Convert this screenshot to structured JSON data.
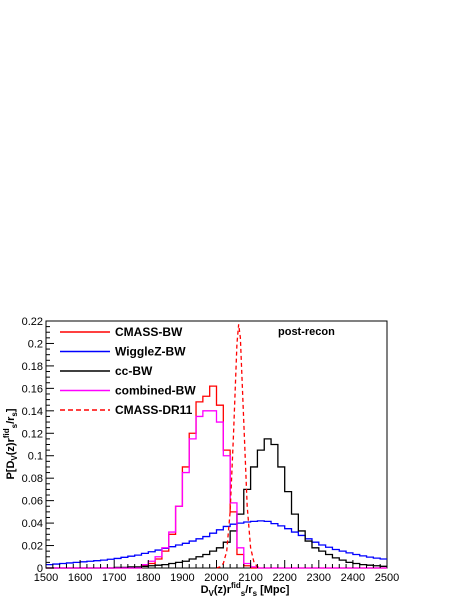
{
  "chart_data": {
    "type": "line",
    "xlabel_main": "D",
    "xlabel_sub1": "V",
    "xlabel_mid": "(z)r",
    "xlabel_sup": "fid",
    "xlabel_sub2": "s",
    "xlabel_mid2": "/r",
    "xlabel_sub3": "s",
    "xlabel_unit": " [Mpc]",
    "ylabel_p1": "P[D",
    "ylabel_sub1": "V",
    "ylabel_p2": "(z)r",
    "ylabel_sup": "fid",
    "ylabel_sub2": "s",
    "ylabel_p3": "/r",
    "ylabel_sub3": "s",
    "ylabel_p4": "]",
    "annotation": "post-recon",
    "xlim": [
      1500,
      2500
    ],
    "ylim": [
      0,
      0.22
    ],
    "x_ticks": [
      "1500",
      "1600",
      "1700",
      "1800",
      "1900",
      "2000",
      "2100",
      "2200",
      "2300",
      "2400",
      "2500"
    ],
    "y_ticks": [
      "0",
      "0.02",
      "0.04",
      "0.06",
      "0.08",
      "0.1",
      "0.12",
      "0.14",
      "0.16",
      "0.18",
      "0.2",
      "0.22"
    ],
    "bin_width": 20,
    "series": [
      {
        "name": "CMASS-BW",
        "color": "#ff0000",
        "style": "step",
        "x": [
          1500,
          1520,
          1540,
          1560,
          1580,
          1600,
          1620,
          1640,
          1660,
          1680,
          1700,
          1720,
          1740,
          1760,
          1780,
          1800,
          1820,
          1840,
          1860,
          1880,
          1900,
          1920,
          1940,
          1960,
          1980,
          2000,
          2020,
          2040,
          2060,
          2080,
          2100,
          2120,
          2140,
          2160,
          2180,
          2200,
          2220,
          2240,
          2260,
          2280,
          2300,
          2320,
          2340,
          2360,
          2380,
          2400,
          2420,
          2440,
          2460,
          2480
        ],
        "y": [
          0,
          0,
          0,
          0,
          0,
          0,
          0,
          0,
          0,
          0,
          0,
          0,
          0,
          0,
          0.002,
          0.004,
          0.008,
          0.015,
          0.03,
          0.055,
          0.09,
          0.12,
          0.148,
          0.153,
          0.162,
          0.145,
          0.105,
          0.05,
          0.012,
          0.002,
          0,
          0,
          0,
          0,
          0,
          0,
          0,
          0,
          0,
          0,
          0,
          0,
          0,
          0,
          0,
          0,
          0,
          0,
          0,
          0
        ]
      },
      {
        "name": "WiggleZ-BW",
        "color": "#0000ff",
        "style": "step",
        "x": [
          1500,
          1520,
          1540,
          1560,
          1580,
          1600,
          1620,
          1640,
          1660,
          1680,
          1700,
          1720,
          1740,
          1760,
          1780,
          1800,
          1820,
          1840,
          1860,
          1880,
          1900,
          1920,
          1940,
          1960,
          1980,
          2000,
          2020,
          2040,
          2060,
          2080,
          2100,
          2120,
          2140,
          2160,
          2180,
          2200,
          2220,
          2240,
          2260,
          2280,
          2300,
          2320,
          2340,
          2360,
          2380,
          2400,
          2420,
          2440,
          2460,
          2480
        ],
        "y": [
          0.003,
          0.0035,
          0.004,
          0.0045,
          0.005,
          0.0055,
          0.006,
          0.0065,
          0.007,
          0.0078,
          0.0085,
          0.0095,
          0.0105,
          0.0115,
          0.013,
          0.0145,
          0.016,
          0.0175,
          0.019,
          0.0205,
          0.022,
          0.024,
          0.026,
          0.028,
          0.031,
          0.034,
          0.037,
          0.039,
          0.04,
          0.041,
          0.0415,
          0.042,
          0.0415,
          0.0395,
          0.0375,
          0.035,
          0.032,
          0.029,
          0.026,
          0.023,
          0.0205,
          0.0185,
          0.0165,
          0.015,
          0.0135,
          0.012,
          0.0108,
          0.0097,
          0.0088,
          0.008
        ]
      },
      {
        "name": "cc-BW",
        "color": "#000000",
        "style": "step",
        "x": [
          1500,
          1520,
          1540,
          1560,
          1580,
          1600,
          1620,
          1640,
          1660,
          1680,
          1700,
          1720,
          1740,
          1760,
          1780,
          1800,
          1820,
          1840,
          1860,
          1880,
          1900,
          1920,
          1940,
          1960,
          1980,
          2000,
          2020,
          2040,
          2060,
          2080,
          2100,
          2120,
          2140,
          2160,
          2180,
          2200,
          2220,
          2240,
          2260,
          2280,
          2300,
          2320,
          2340,
          2360,
          2380,
          2400,
          2420,
          2440,
          2460,
          2480
        ],
        "y": [
          0,
          0,
          0,
          0,
          0,
          0,
          0,
          0,
          0,
          0,
          0.0005,
          0.0005,
          0.001,
          0.001,
          0.0015,
          0.002,
          0.0025,
          0.003,
          0.004,
          0.005,
          0.006,
          0.008,
          0.01,
          0.012,
          0.015,
          0.018,
          0.023,
          0.033,
          0.048,
          0.07,
          0.09,
          0.105,
          0.115,
          0.11,
          0.09,
          0.068,
          0.048,
          0.033,
          0.024,
          0.018,
          0.015,
          0.012,
          0.009,
          0.007,
          0.005,
          0.004,
          0.003,
          0.0025,
          0.002,
          0.0015
        ]
      },
      {
        "name": "combined-BW",
        "color": "#ff00ff",
        "style": "step",
        "x": [
          1500,
          1520,
          1540,
          1560,
          1580,
          1600,
          1620,
          1640,
          1660,
          1680,
          1700,
          1720,
          1740,
          1760,
          1780,
          1800,
          1820,
          1840,
          1860,
          1880,
          1900,
          1920,
          1940,
          1960,
          1980,
          2000,
          2020,
          2040,
          2060,
          2080,
          2100,
          2120,
          2140,
          2160,
          2180,
          2200,
          2220,
          2240,
          2260,
          2280,
          2300,
          2320,
          2340,
          2360,
          2380,
          2400,
          2420,
          2440,
          2460,
          2480
        ],
        "y": [
          0,
          0,
          0,
          0,
          0,
          0,
          0,
          0,
          0,
          0,
          0,
          0,
          0,
          0,
          0.003,
          0.006,
          0.01,
          0.018,
          0.032,
          0.055,
          0.085,
          0.115,
          0.135,
          0.14,
          0.14,
          0.13,
          0.1,
          0.058,
          0.018,
          0.004,
          0.001,
          0,
          0,
          0,
          0,
          0,
          0,
          0,
          0,
          0,
          0,
          0,
          0,
          0,
          0,
          0,
          0,
          0,
          0,
          0
        ]
      },
      {
        "name": "CMASS-DR11",
        "color": "#ff0000",
        "style": "dashed",
        "x": [
          2000,
          2010,
          2020,
          2030,
          2040,
          2050,
          2060,
          2065,
          2070,
          2080,
          2090,
          2100,
          2110,
          2120,
          2130
        ],
        "y": [
          0,
          0.001,
          0.004,
          0.015,
          0.05,
          0.12,
          0.2,
          0.217,
          0.205,
          0.13,
          0.055,
          0.018,
          0.005,
          0.001,
          0
        ]
      }
    ]
  }
}
